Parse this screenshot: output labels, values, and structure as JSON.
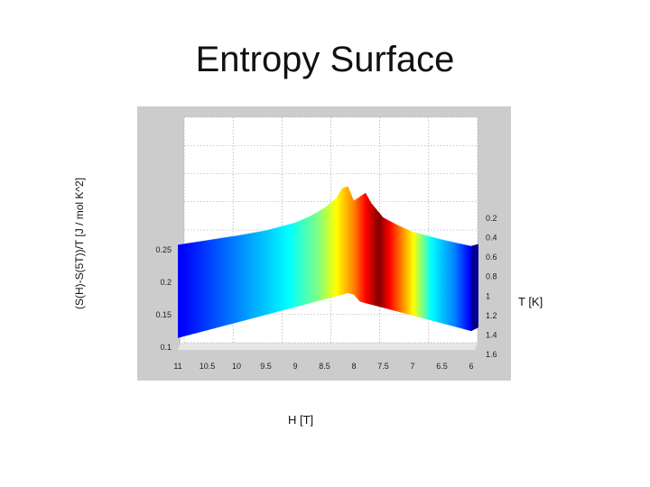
{
  "title": "Entropy Surface",
  "chart_data": {
    "type": "surface",
    "title": "Entropy Surface",
    "xlabel": "H [T]",
    "ylabel": "(S(H)-S(5T))/T [J / mol K^2]",
    "tlabel": "T [K]",
    "x_ticks": [
      "11",
      "10.5",
      "10",
      "9.5",
      "9",
      "8.5",
      "8",
      "7.5",
      "7",
      "6.5",
      "6"
    ],
    "z_ticks": [
      "0.1",
      "0.15",
      "0.2",
      "0.25"
    ],
    "t_ticks": [
      "0.2",
      "0.4",
      "0.6",
      "0.8",
      "1",
      "1.2",
      "1.4",
      "1.6"
    ],
    "xlim": [
      11,
      6
    ],
    "zlim": [
      0.1,
      0.3
    ],
    "tlim": [
      0.2,
      1.6
    ],
    "ridge": {
      "H": [
        11,
        10.5,
        10,
        9.5,
        9,
        8.75,
        8.5,
        8.3,
        8.2,
        8.1,
        8,
        7.9,
        7.8,
        7.7,
        7.5,
        7.25,
        7,
        6.5,
        6
      ],
      "peak_value": [
        0.258,
        0.265,
        0.272,
        0.28,
        0.292,
        0.302,
        0.315,
        0.33,
        0.345,
        0.348,
        0.326,
        0.332,
        0.338,
        0.322,
        0.3,
        0.288,
        0.278,
        0.266,
        0.256
      ]
    },
    "colormap": [
      "#00008f",
      "#0000ff",
      "#0080ff",
      "#00ffff",
      "#80ff80",
      "#ffff00",
      "#ff8000",
      "#ff0000",
      "#800000"
    ],
    "grid": true,
    "background_color": "#cccccc"
  }
}
